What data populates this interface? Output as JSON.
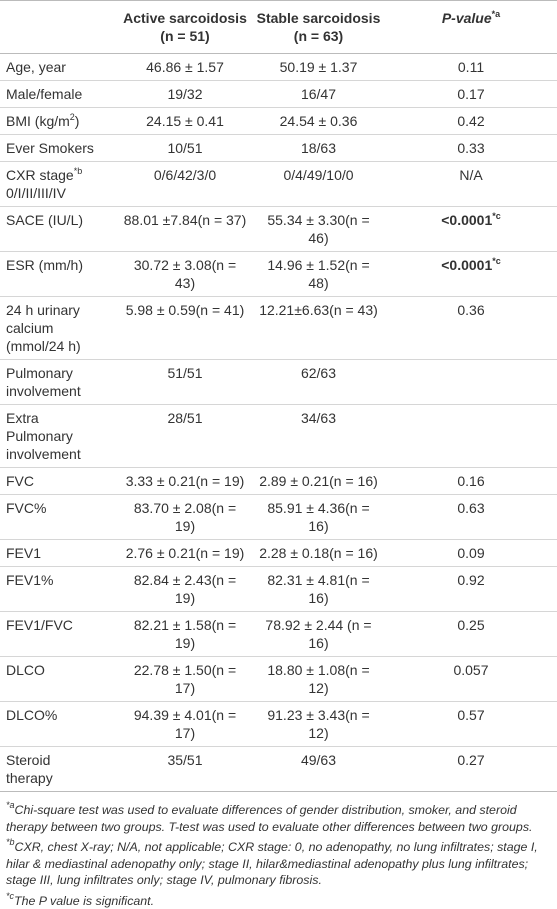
{
  "header": {
    "columns": [
      {
        "name": "Active sarcoidosis",
        "n": "(n = 51)"
      },
      {
        "name": "Stable sarcoidosis",
        "n": "(n = 63)"
      },
      {
        "name": "P-value",
        "sup": "*a"
      }
    ]
  },
  "rows": [
    {
      "label": "Age, year",
      "cells": [
        "46.86 ± 1.57",
        "50.19 ± 1.37",
        "0.11"
      ]
    },
    {
      "label": "Male/female",
      "cells": [
        "19/32",
        "16/47",
        "0.17"
      ]
    },
    {
      "label": "BMI (kg/m",
      "label_sup": "2",
      "label_end": ")",
      "cells": [
        "24.15 ± 0.41",
        "24.54 ± 0.36",
        "0.42"
      ]
    },
    {
      "label": "Ever Smokers",
      "cells": [
        "10/51",
        "18/63",
        "0.33"
      ]
    },
    {
      "label": "CXR stage",
      "label_sup": "*b",
      "label_end": "0/I/II/III/IV",
      "cells": [
        "0/6/42/3/0",
        "0/4/49/10/0",
        "N/A"
      ]
    },
    {
      "label": "SACE (IU/L)",
      "cells": [
        "88.01 ±7.84(n = 37)",
        "55.34 ± 3.30(n = 46)",
        "<0.0001"
      ],
      "cell_sup": "*c"
    },
    {
      "label": "ESR (mm/h)",
      "cells": [
        "30.72 ± 3.08(n = 43)",
        "14.96 ± 1.52(n = 48)",
        "<0.0001"
      ],
      "cell_sup": "*c"
    },
    {
      "label": "24 h urinary calcium (mmol/24 h)",
      "cells": [
        "5.98 ± 0.59(n = 41)",
        "12.21±6.63(n = 43)",
        "0.36"
      ]
    },
    {
      "label": "Pulmonary involvement",
      "cells": [
        "51/51",
        "62/63",
        ""
      ]
    },
    {
      "label": "Extra Pulmonary involvement",
      "cells": [
        "28/51",
        "34/63",
        ""
      ]
    },
    {
      "label": "FVC",
      "cells": [
        "3.33 ± 0.21(n = 19)",
        "2.89 ± 0.21(n = 16)",
        "0.16"
      ]
    },
    {
      "label": "FVC%",
      "cells": [
        "83.70 ± 2.08(n = 19)",
        "85.91 ± 4.36(n = 16)",
        "0.63"
      ]
    },
    {
      "label": "FEV1",
      "cells": [
        "2.76 ± 0.21(n = 19)",
        "2.28 ± 0.18(n = 16)",
        "0.09"
      ]
    },
    {
      "label": "FEV1%",
      "cells": [
        "82.84 ± 2.43(n = 19)",
        "82.31 ± 4.81(n = 16)",
        "0.92"
      ]
    },
    {
      "label": "FEV1/FVC",
      "cells": [
        "82.21 ± 1.58(n = 19)",
        "78.92 ± 2.44 (n = 16)",
        "0.25"
      ]
    },
    {
      "label": "DLCO",
      "cells": [
        "22.78 ± 1.50(n = 17)",
        "18.80 ± 1.08(n = 12)",
        "0.057"
      ]
    },
    {
      "label": "DLCO%",
      "cells": [
        "94.39 ± 4.01(n = 17)",
        "91.23 ± 3.43(n = 12)",
        "0.57"
      ]
    },
    {
      "label": "Steroid therapy",
      "cells": [
        "35/51",
        "49/63",
        "0.27"
      ]
    }
  ],
  "footnotes": [
    {
      "mark": "*a",
      "text": "Chi-square test was used to evaluate differences of gender distribution, smoker, and steroid therapy between two groups. T-test was used to evaluate other differences between two groups."
    },
    {
      "mark": "*b",
      "text": "CXR, chest X-ray; N/A, not applicable; CXR stage: 0, no adenopathy, no lung infiltrates; stage I, hilar & mediastinal adenopathy only; stage II, hilar&mediastinal adenopathy plus lung infiltrates; stage III, lung infiltrates only; stage IV, pulmonary fibrosis."
    },
    {
      "mark": "*c",
      "text": "The P value is significant."
    }
  ]
}
